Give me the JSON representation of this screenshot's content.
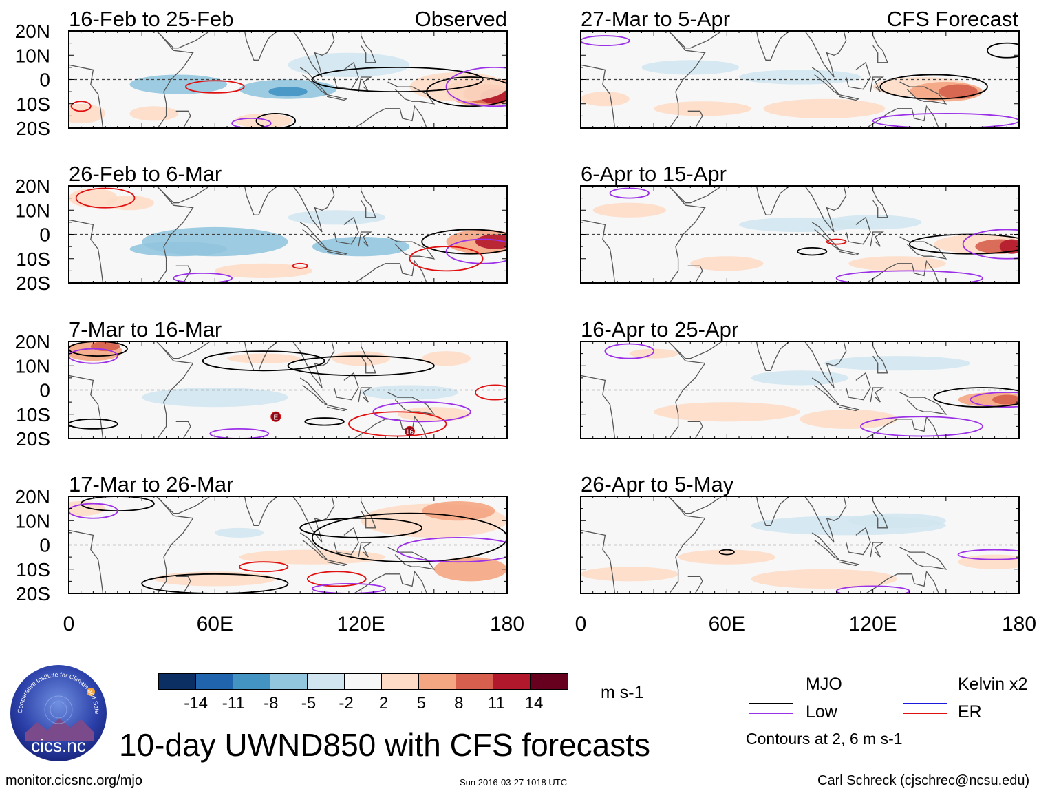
{
  "header": {
    "left_label": "Observed",
    "right_label": "CFS Forecast"
  },
  "panels": [
    {
      "title": "16-Feb to 25-Feb"
    },
    {
      "title": "27-Mar to 5-Apr"
    },
    {
      "title": "26-Feb to 6-Mar"
    },
    {
      "title": "6-Apr to 15-Apr"
    },
    {
      "title": "7-Mar to 16-Mar"
    },
    {
      "title": "16-Apr to 25-Apr"
    },
    {
      "title": "17-Mar to 26-Mar"
    },
    {
      "title": "26-Apr to 5-May"
    }
  ],
  "axes": {
    "lat_labels": [
      "20N",
      "10N",
      "0",
      "10S",
      "20S"
    ],
    "lon_labels": [
      "0",
      "60E",
      "120E",
      "180"
    ]
  },
  "map_annotations": [
    "E",
    "16"
  ],
  "colorbar": {
    "ticks": [
      "-14",
      "-11",
      "-8",
      "-5",
      "-2",
      "2",
      "5",
      "8",
      "11",
      "14"
    ],
    "colors": [
      "#0b2f63",
      "#1f64ad",
      "#4393c3",
      "#92c5de",
      "#d1e5f0",
      "#f7f7f7",
      "#fddbc7",
      "#f4a582",
      "#d6604d",
      "#b2182b",
      "#67001f"
    ],
    "units": "m s-1"
  },
  "title": "10-day UWND850 with CFS forecasts",
  "legend": {
    "items": [
      {
        "label": "MJO",
        "color": "#000000"
      },
      {
        "label": "Low",
        "color": "#9b30e8"
      },
      {
        "label": "Kelvin x2",
        "color": "#1a1adf"
      },
      {
        "label": "ER",
        "color": "#e01010"
      }
    ],
    "contour_note": "Contours at 2, 6 m s-1"
  },
  "logo": {
    "text": "cics.nc",
    "ring_text": "Cooperative Institute for Climate and Satellites"
  },
  "footer": {
    "left": "monitor.cicsnc.org/mjo",
    "center": "Sun 2016-03-27 1018 UTC",
    "right": "Carl Schreck (cjschrec@ncsu.edu)"
  }
}
